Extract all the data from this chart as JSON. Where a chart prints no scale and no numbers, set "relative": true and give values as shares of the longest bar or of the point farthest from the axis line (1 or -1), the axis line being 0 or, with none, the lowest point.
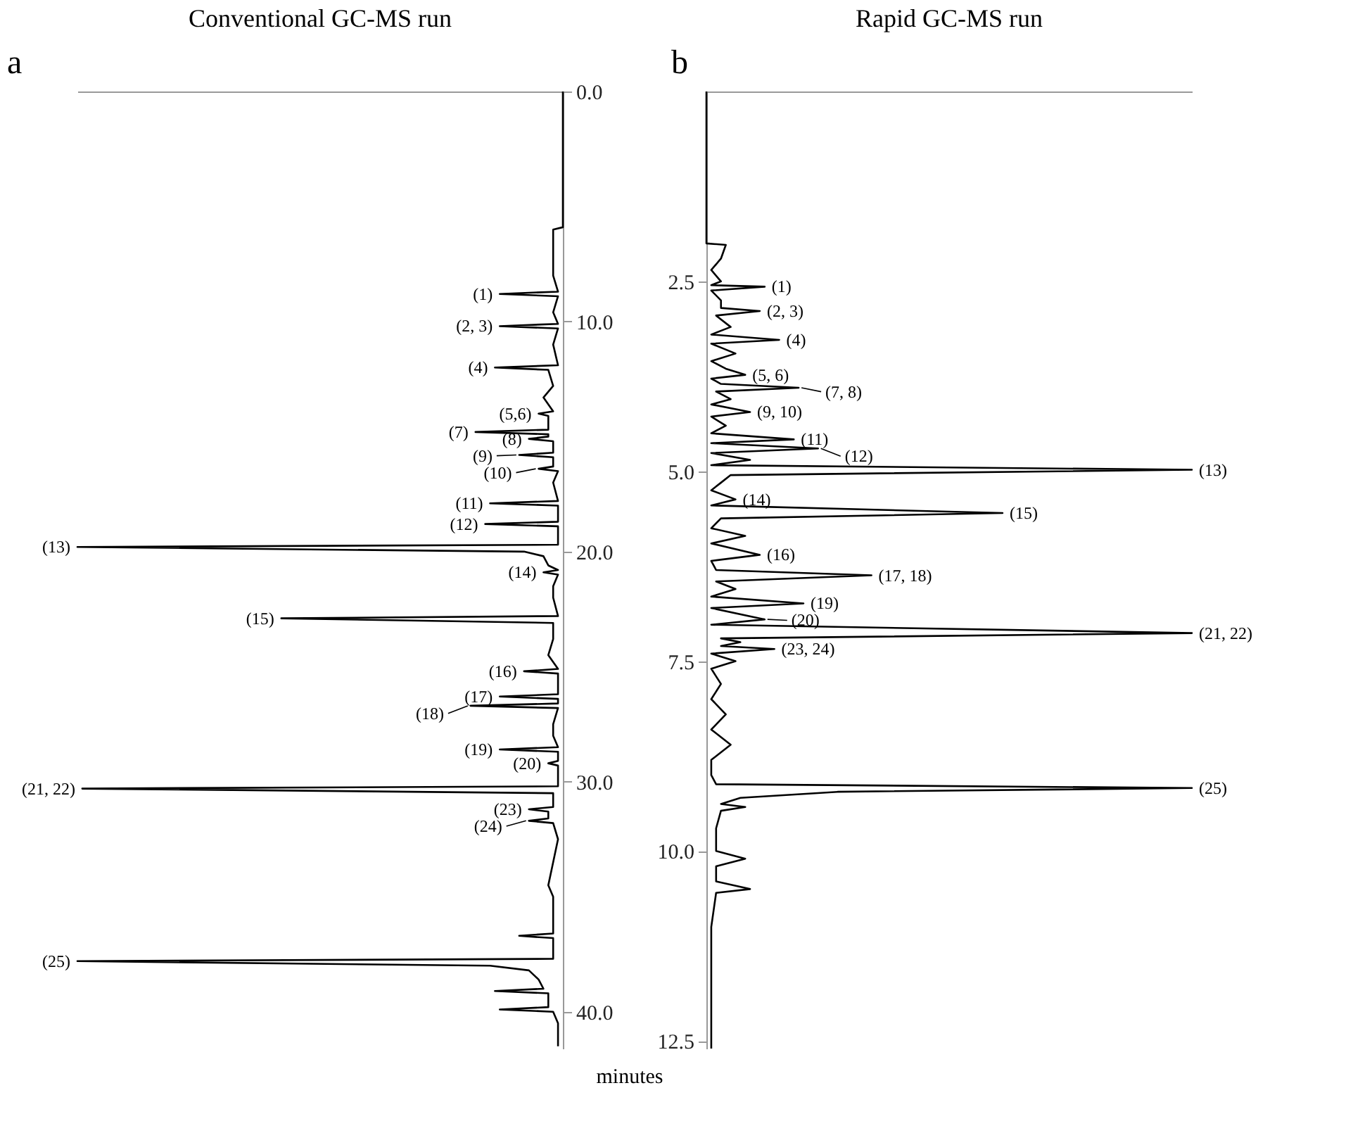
{
  "chart_data": [
    {
      "type": "line",
      "orientation": "horizontal",
      "title": "Conventional GC-MS run",
      "relative": true,
      "legend": false,
      "color": "#000000",
      "ylim": [
        41.6,
        0
      ],
      "yticks": [
        {
          "value": 0,
          "label": "0.0"
        },
        {
          "value": 10,
          "label": "10.0"
        },
        {
          "value": 20,
          "label": "20.0"
        },
        {
          "value": 30,
          "label": "30.0"
        },
        {
          "value": 40,
          "label": "40.0"
        }
      ],
      "x": [
        0,
        5.9,
        6.0,
        7.0,
        8.0,
        8.7,
        8.8,
        8.9,
        9.6,
        10.1,
        10.2,
        10.3,
        11.0,
        11.9,
        12.0,
        12.1,
        12.8,
        13.3,
        13.9,
        14.0,
        14.1,
        14.7,
        14.8,
        14.9,
        15.0,
        15.1,
        15.2,
        15.7,
        15.8,
        15.9,
        16.3,
        16.4,
        16.5,
        17.0,
        17.8,
        17.9,
        18.0,
        18.7,
        18.8,
        18.9,
        19.7,
        19.8,
        20.0,
        20.2,
        20.6,
        20.8,
        20.9,
        21.0,
        21.5,
        22.0,
        22.8,
        22.9,
        23.1,
        23.8,
        24.5,
        25.1,
        25.2,
        25.3,
        26.2,
        26.3,
        26.4,
        26.6,
        26.7,
        26.8,
        27.5,
        28.0,
        28.5,
        28.6,
        28.7,
        29.1,
        29.2,
        29.3,
        30.2,
        30.3,
        30.5,
        31.1,
        31.2,
        31.3,
        31.6,
        31.7,
        31.8,
        32.5,
        33.5,
        34.5,
        35.0,
        36.0,
        36.6,
        36.7,
        36.8,
        37.7,
        37.8,
        38.0,
        38.2,
        38.6,
        39.0,
        39.1,
        39.2,
        39.8,
        39.9,
        40.0,
        40.5,
        41.5
      ],
      "values": [
        0,
        0,
        -0.02,
        -0.02,
        -0.02,
        -0.01,
        -0.13,
        -0.01,
        -0.02,
        -0.01,
        -0.13,
        -0.01,
        -0.02,
        -0.01,
        -0.14,
        -0.03,
        -0.02,
        -0.04,
        -0.02,
        -0.05,
        -0.03,
        -0.03,
        -0.18,
        -0.03,
        -0.03,
        -0.07,
        -0.02,
        -0.02,
        -0.09,
        -0.02,
        -0.02,
        -0.05,
        -0.01,
        -0.02,
        -0.01,
        -0.15,
        -0.01,
        -0.01,
        -0.16,
        -0.01,
        -0.01,
        -1.0,
        -0.08,
        -0.04,
        -0.03,
        -0.01,
        -0.04,
        -0.01,
        -0.02,
        -0.02,
        -0.01,
        -0.58,
        -0.02,
        -0.02,
        -0.03,
        -0.01,
        -0.08,
        -0.01,
        -0.01,
        -0.13,
        -0.01,
        -0.01,
        -0.19,
        -0.01,
        -0.02,
        -0.02,
        -0.01,
        -0.13,
        -0.01,
        -0.01,
        -0.03,
        -0.01,
        -0.01,
        -0.99,
        -0.02,
        -0.02,
        -0.07,
        -0.03,
        -0.03,
        -0.07,
        -0.02,
        -0.01,
        -0.02,
        -0.03,
        -0.02,
        -0.02,
        -0.02,
        -0.09,
        -0.02,
        -0.02,
        -1.0,
        -0.15,
        -0.07,
        -0.05,
        -0.04,
        -0.14,
        -0.03,
        -0.03,
        -0.13,
        -0.02,
        -0.01,
        -0.01
      ],
      "annotations": [
        "a",
        "minutes",
        {
          "text": "(1)",
          "y": 8.8,
          "x": -0.13
        },
        {
          "text": "(2, 3)",
          "y": 10.2,
          "x": -0.13
        },
        {
          "text": "(4)",
          "y": 12.0,
          "x": -0.14
        },
        {
          "text": "(5,6)",
          "y": 14.0,
          "x": -0.05
        },
        {
          "text": "(7)",
          "y": 14.8,
          "x": -0.18
        },
        {
          "text": "(8)",
          "y": 15.1,
          "x": -0.07
        },
        {
          "text": "(9)",
          "y": 15.8,
          "x": -0.09
        },
        {
          "text": "(10)",
          "y": 16.4,
          "x": -0.05
        },
        {
          "text": "(11)",
          "y": 17.9,
          "x": -0.15
        },
        {
          "text": "(12)",
          "y": 18.8,
          "x": -0.16
        },
        {
          "text": "(13)",
          "y": 19.8,
          "x": -1.0
        },
        {
          "text": "(14)",
          "y": 20.9,
          "x": -0.04
        },
        {
          "text": "(15)",
          "y": 22.9,
          "x": -0.58
        },
        {
          "text": "(16)",
          "y": 25.2,
          "x": -0.08
        },
        {
          "text": "(17)",
          "y": 26.3,
          "x": -0.13
        },
        {
          "text": "(18)",
          "y": 26.7,
          "x": -0.19
        },
        {
          "text": "(19)",
          "y": 28.6,
          "x": -0.13
        },
        {
          "text": "(20)",
          "y": 29.2,
          "x": -0.03
        },
        {
          "text": "(21, 22)",
          "y": 30.3,
          "x": -0.99
        },
        {
          "text": "(23)",
          "y": 31.2,
          "x": -0.07
        },
        {
          "text": "(24)",
          "y": 31.7,
          "x": -0.07
        },
        {
          "text": "(25)",
          "y": 37.8,
          "x": -1.0
        }
      ]
    },
    {
      "type": "line",
      "orientation": "horizontal",
      "title": "Rapid GC-MS run",
      "relative": true,
      "legend": false,
      "color": "#000000",
      "ylim": [
        12.6,
        0
      ],
      "yticks": [
        {
          "value": 2.5,
          "label": "2.5"
        },
        {
          "value": 5,
          "label": "5.0"
        },
        {
          "value": 7.5,
          "label": "7.5"
        },
        {
          "value": 10,
          "label": "10.0"
        },
        {
          "value": 12.5,
          "label": "12.5"
        }
      ],
      "x": [
        0,
        2.0,
        2.02,
        2.2,
        2.35,
        2.5,
        2.55,
        2.57,
        2.62,
        2.75,
        2.85,
        2.89,
        2.95,
        3.1,
        3.2,
        3.27,
        3.32,
        3.45,
        3.55,
        3.65,
        3.73,
        3.78,
        3.85,
        3.9,
        3.95,
        4.05,
        4.12,
        4.22,
        4.28,
        4.4,
        4.5,
        4.58,
        4.63,
        4.7,
        4.76,
        4.85,
        4.92,
        4.98,
        5.05,
        5.15,
        5.25,
        5.37,
        5.45,
        5.55,
        5.62,
        5.75,
        5.85,
        5.95,
        6.1,
        6.18,
        6.3,
        6.37,
        6.45,
        6.55,
        6.65,
        6.74,
        6.8,
        6.95,
        7.02,
        7.13,
        7.2,
        7.25,
        7.3,
        7.34,
        7.4,
        7.5,
        7.6,
        7.8,
        8.0,
        8.2,
        8.4,
        8.6,
        8.8,
        9.0,
        9.12,
        9.17,
        9.22,
        9.3,
        9.38,
        9.42,
        9.47,
        9.7,
        10.0,
        10.1,
        10.2,
        10.4,
        10.5,
        10.55,
        11.0,
        12.6
      ],
      "values": [
        0,
        0,
        0.04,
        0.03,
        0.01,
        0.03,
        0.01,
        0.12,
        0.01,
        0.03,
        0.03,
        0.11,
        0.02,
        0.05,
        0.01,
        0.15,
        0.01,
        0.06,
        0.01,
        0.04,
        0.08,
        0.01,
        0.03,
        0.19,
        0.02,
        0.05,
        0.01,
        0.09,
        0.01,
        0.04,
        0.01,
        0.18,
        0.01,
        0.23,
        0.01,
        0.09,
        0.01,
        1.0,
        0.05,
        0.03,
        0.01,
        0.06,
        0.01,
        0.61,
        0.03,
        0.01,
        0.08,
        0.01,
        0.11,
        0.01,
        0.02,
        0.34,
        0.02,
        0.06,
        0.01,
        0.2,
        0.01,
        0.12,
        0.01,
        1.0,
        0.03,
        0.07,
        0.03,
        0.14,
        0.01,
        0.06,
        0.01,
        0.03,
        0.01,
        0.04,
        0.01,
        0.05,
        0.01,
        0.01,
        0.02,
        1.0,
        0.27,
        0.07,
        0.03,
        0.08,
        0.03,
        0.02,
        0.02,
        0.08,
        0.02,
        0.02,
        0.09,
        0.02,
        0.01,
        0.01
      ],
      "annotations": [
        "b",
        {
          "text": "(1)",
          "y": 2.57,
          "x": 0.12
        },
        {
          "text": "(2, 3)",
          "y": 2.89,
          "x": 0.11
        },
        {
          "text": "(4)",
          "y": 3.27,
          "x": 0.15
        },
        {
          "text": "(5, 6)",
          "y": 3.73,
          "x": 0.08
        },
        {
          "text": "(7, 8)",
          "y": 3.9,
          "x": 0.19
        },
        {
          "text": "(9, 10)",
          "y": 4.22,
          "x": 0.09
        },
        {
          "text": "(11)",
          "y": 4.58,
          "x": 0.18
        },
        {
          "text": "(12)",
          "y": 4.7,
          "x": 0.23
        },
        {
          "text": "(13)",
          "y": 4.98,
          "x": 1.0
        },
        {
          "text": "(14)",
          "y": 5.37,
          "x": 0.06
        },
        {
          "text": "(15)",
          "y": 5.55,
          "x": 0.61
        },
        {
          "text": "(16)",
          "y": 6.1,
          "x": 0.11
        },
        {
          "text": "(17, 18)",
          "y": 6.37,
          "x": 0.34
        },
        {
          "text": "(19)",
          "y": 6.74,
          "x": 0.2
        },
        {
          "text": "(20)",
          "y": 6.95,
          "x": 0.12
        },
        {
          "text": "(21, 22)",
          "y": 7.13,
          "x": 1.0
        },
        {
          "text": "(23, 24)",
          "y": 7.34,
          "x": 0.14
        },
        {
          "text": "(25)",
          "y": 9.17,
          "x": 1.0
        }
      ]
    }
  ]
}
